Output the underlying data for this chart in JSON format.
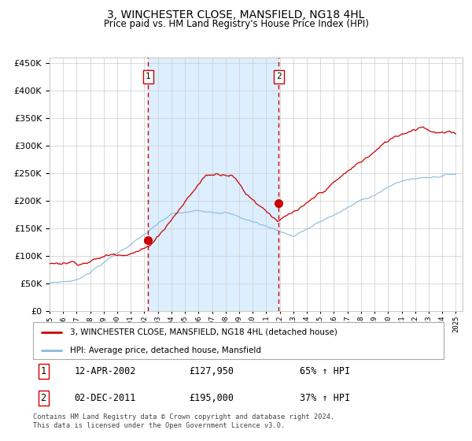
{
  "title1": "3, WINCHESTER CLOSE, MANSFIELD, NG18 4HL",
  "title2": "Price paid vs. HM Land Registry's House Price Index (HPI)",
  "legend1": "3, WINCHESTER CLOSE, MANSFIELD, NG18 4HL (detached house)",
  "legend2": "HPI: Average price, detached house, Mansfield",
  "transaction1_date": "12-APR-2002",
  "transaction1_price": 127950,
  "transaction1_hpi": "65% ↑ HPI",
  "transaction2_date": "02-DEC-2011",
  "transaction2_price": 195000,
  "transaction2_hpi": "37% ↑ HPI",
  "transaction1_year": 2002.28,
  "transaction2_year": 2011.92,
  "hpi_color": "#88bbdd",
  "property_color": "#cc0000",
  "shade_color": "#ddeeff",
  "background_color": "#ffffff",
  "grid_color": "#cccccc",
  "footer": "Contains HM Land Registry data © Crown copyright and database right 2024.\nThis data is licensed under the Open Government Licence v3.0.",
  "ylim": [
    0,
    460000
  ],
  "xlim_start": 1995,
  "xlim_end": 2025.5
}
